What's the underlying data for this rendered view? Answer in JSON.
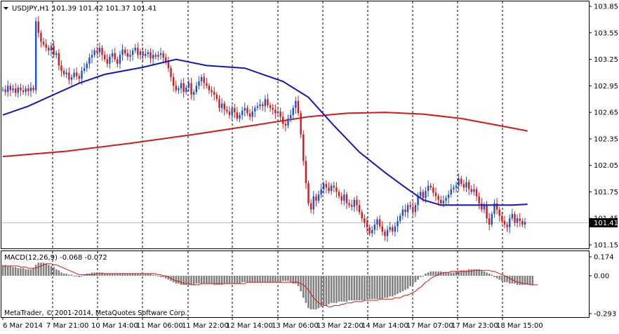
{
  "header": {
    "symbol_tf": "USDJPY,H1",
    "ohlc": "101.39 101.42 101.37 101.41"
  },
  "macd_panel": {
    "title": "MACD(12,26,9) -0.068 -0.072",
    "copyright": "MetaTrader, © 2001-2014, MetaQuotes Software Corp.",
    "axis_labels": [
      "0.174",
      "0.00",
      "-0.293"
    ]
  },
  "chart_data": [
    {
      "type": "candlestick",
      "name": "price",
      "ylim": [
        101.05,
        103.91
      ],
      "y_ticks": [
        "103.85",
        "103.55",
        "103.25",
        "102.95",
        "102.65",
        "102.35",
        "102.05",
        "101.75",
        "101.45",
        "101.15"
      ],
      "current_price_label": "101.41",
      "current_price": 101.41,
      "x_labels": [
        "6 Mar 2014",
        "7 Mar 21:00",
        "10 Mar 14:00",
        "11 Mar 06:00",
        "11 Mar 22:00",
        "12 Mar 14:00",
        "13 Mar 06:00",
        "13 Mar 22:00",
        "14 Mar 14:00",
        "17 Mar 07:00",
        "17 Mar 23:00",
        "18 Mar 15:00"
      ],
      "colors": {
        "bull": "#1e4fd6",
        "bear": "#d81818",
        "ma_fast": "#1414c8",
        "ma_slow": "#d81818",
        "grid": "#000000",
        "price_line": "#c0c0c0"
      },
      "closes": [
        102.91,
        102.88,
        102.95,
        102.9,
        102.92,
        102.87,
        102.93,
        102.9,
        102.88,
        102.92,
        102.89,
        102.93,
        102.9,
        103.68,
        103.55,
        103.45,
        103.42,
        103.38,
        103.35,
        103.4,
        103.3,
        103.32,
        103.18,
        103.12,
        103.08,
        103.1,
        103.02,
        103.05,
        103.1,
        103.06,
        103.03,
        103.12,
        103.15,
        103.2,
        103.27,
        103.3,
        103.35,
        103.33,
        103.38,
        103.3,
        103.25,
        103.2,
        103.28,
        103.32,
        103.25,
        103.2,
        103.3,
        103.36,
        103.32,
        103.28,
        103.3,
        103.35,
        103.38,
        103.3,
        103.34,
        103.29,
        103.31,
        103.33,
        103.26,
        103.3,
        103.28,
        103.3,
        103.32,
        103.27,
        103.22,
        103.15,
        103.05,
        102.95,
        102.9,
        102.92,
        102.98,
        102.88,
        102.93,
        102.98,
        102.85,
        102.88,
        102.95,
        103.0,
        103.05,
        102.98,
        102.95,
        102.9,
        102.88,
        102.85,
        102.8,
        102.7,
        102.75,
        102.68,
        102.66,
        102.62,
        102.7,
        102.65,
        102.58,
        102.62,
        102.67,
        102.7,
        102.64,
        102.6,
        102.66,
        102.7,
        102.72,
        102.74,
        102.72,
        102.8,
        102.73,
        102.7,
        102.68,
        102.64,
        102.66,
        102.6,
        102.52,
        102.5,
        102.58,
        102.62,
        102.7,
        102.78,
        102.64,
        102.4,
        102.1,
        101.85,
        101.62,
        101.55,
        101.7,
        101.65,
        101.72,
        101.78,
        101.84,
        101.8,
        101.76,
        101.82,
        101.8,
        101.75,
        101.7,
        101.65,
        101.72,
        101.62,
        101.6,
        101.58,
        101.66,
        101.6,
        101.52,
        101.45,
        101.4,
        101.35,
        101.28,
        101.32,
        101.38,
        101.44,
        101.36,
        101.3,
        101.25,
        101.32,
        101.35,
        101.3,
        101.36,
        101.42,
        101.48,
        101.55,
        101.52,
        101.6,
        101.58,
        101.52,
        101.6,
        101.7,
        101.75,
        101.68,
        101.76,
        101.82,
        101.8,
        101.74,
        101.7,
        101.66,
        101.62,
        101.65,
        101.68,
        101.72,
        101.78,
        101.8,
        101.82,
        101.9,
        101.84,
        101.8,
        101.86,
        101.78,
        101.75,
        101.78,
        101.7,
        101.62,
        101.55,
        101.6,
        101.45,
        101.38,
        101.5,
        101.62,
        101.55,
        101.48,
        101.42,
        101.38,
        101.35,
        101.45,
        101.5,
        101.4,
        101.45,
        101.42,
        101.38,
        101.41
      ],
      "ma_fast": {
        "anchors": [
          [
            0,
            102.62
          ],
          [
            10,
            102.72
          ],
          [
            20,
            102.85
          ],
          [
            30,
            102.98
          ],
          [
            40,
            103.08
          ],
          [
            55,
            103.16
          ],
          [
            68,
            103.25
          ],
          [
            80,
            103.18
          ],
          [
            95,
            103.15
          ],
          [
            110,
            103.0
          ],
          [
            120,
            102.82
          ],
          [
            130,
            102.5
          ],
          [
            140,
            102.2
          ],
          [
            150,
            101.97
          ],
          [
            158,
            101.8
          ],
          [
            165,
            101.66
          ],
          [
            172,
            101.6
          ],
          [
            186,
            101.6
          ],
          [
            200,
            101.6
          ],
          [
            206,
            101.61
          ]
        ]
      },
      "ma_slow": {
        "anchors": [
          [
            0,
            102.15
          ],
          [
            25,
            102.21
          ],
          [
            50,
            102.3
          ],
          [
            75,
            102.4
          ],
          [
            100,
            102.51
          ],
          [
            120,
            102.6
          ],
          [
            135,
            102.64
          ],
          [
            150,
            102.65
          ],
          [
            165,
            102.63
          ],
          [
            180,
            102.58
          ],
          [
            195,
            102.5
          ],
          [
            206,
            102.44
          ]
        ]
      }
    },
    {
      "type": "macd",
      "name": "MACD(12,26,9)",
      "ylim": [
        -0.293,
        0.174
      ],
      "y_ticks": [
        "0.174",
        "0.00",
        "-0.293"
      ],
      "histogram_colors": {
        "bar": "#808080",
        "signal": "#d81818"
      },
      "histogram": [
        0.1,
        0.1,
        0.09,
        0.09,
        0.08,
        0.08,
        0.07,
        0.07,
        0.07,
        0.06,
        0.06,
        0.06,
        0.07,
        0.1,
        0.12,
        0.12,
        0.12,
        0.11,
        0.1,
        0.09,
        0.08,
        0.06,
        0.05,
        0.03,
        0.02,
        0.02,
        0.01,
        0.01,
        0.0,
        0.0,
        -0.01,
        0.0,
        0.01,
        0.02,
        0.02,
        0.03,
        0.03,
        0.03,
        0.03,
        0.03,
        0.02,
        0.02,
        0.02,
        0.02,
        0.02,
        0.02,
        0.02,
        0.02,
        0.02,
        0.02,
        0.02,
        0.02,
        0.02,
        0.02,
        0.02,
        0.02,
        0.02,
        0.02,
        0.02,
        0.01,
        0.01,
        0.0,
        -0.01,
        -0.01,
        -0.02,
        -0.03,
        -0.04,
        -0.05,
        -0.06,
        -0.06,
        -0.07,
        -0.07,
        -0.07,
        -0.07,
        -0.07,
        -0.07,
        -0.06,
        -0.06,
        -0.06,
        -0.06,
        -0.06,
        -0.06,
        -0.06,
        -0.07,
        -0.07,
        -0.07,
        -0.07,
        -0.06,
        -0.06,
        -0.06,
        -0.06,
        -0.06,
        -0.06,
        -0.06,
        -0.05,
        -0.05,
        -0.05,
        -0.05,
        -0.05,
        -0.05,
        -0.05,
        -0.05,
        -0.05,
        -0.05,
        -0.05,
        -0.05,
        -0.05,
        -0.05,
        -0.05,
        -0.05,
        -0.04,
        -0.04,
        -0.04,
        -0.05,
        -0.06,
        -0.06,
        -0.08,
        -0.12,
        -0.17,
        -0.21,
        -0.25,
        -0.26,
        -0.26,
        -0.26,
        -0.25,
        -0.24,
        -0.23,
        -0.23,
        -0.22,
        -0.21,
        -0.21,
        -0.21,
        -0.2,
        -0.2,
        -0.2,
        -0.2,
        -0.19,
        -0.19,
        -0.19,
        -0.19,
        -0.19,
        -0.19,
        -0.19,
        -0.18,
        -0.18,
        -0.18,
        -0.18,
        -0.18,
        -0.18,
        -0.18,
        -0.17,
        -0.17,
        -0.16,
        -0.16,
        -0.15,
        -0.14,
        -0.13,
        -0.12,
        -0.11,
        -0.1,
        -0.08,
        -0.07,
        -0.05,
        -0.03,
        -0.01,
        0.0,
        0.02,
        0.03,
        0.04,
        0.04,
        0.04,
        0.04,
        0.04,
        0.03,
        0.03,
        0.03,
        0.03,
        0.03,
        0.04,
        0.04,
        0.05,
        0.05,
        0.05,
        0.06,
        0.06,
        0.06,
        0.06,
        0.06,
        0.05,
        0.04,
        0.03,
        0.02,
        0.01,
        -0.01,
        -0.02,
        -0.03,
        -0.04,
        -0.05,
        -0.05,
        -0.06,
        -0.06,
        -0.06,
        -0.07,
        -0.07,
        -0.07,
        -0.07,
        -0.07,
        -0.07,
        -0.07
      ],
      "signal": [
        0.08,
        0.09,
        0.09,
        0.09,
        0.09,
        0.09,
        0.09,
        0.08,
        0.08,
        0.08,
        0.07,
        0.07,
        0.07,
        0.07,
        0.08,
        0.09,
        0.1,
        0.11,
        0.11,
        0.11,
        0.1,
        0.1,
        0.09,
        0.08,
        0.07,
        0.06,
        0.05,
        0.04,
        0.03,
        0.02,
        0.01,
        0.01,
        0.01,
        0.01,
        0.01,
        0.01,
        0.01,
        0.02,
        0.02,
        0.02,
        0.02,
        0.02,
        0.02,
        0.02,
        0.02,
        0.02,
        0.02,
        0.02,
        0.02,
        0.02,
        0.02,
        0.02,
        0.02,
        0.02,
        0.02,
        0.02,
        0.02,
        0.02,
        0.02,
        0.02,
        0.02,
        0.01,
        0.01,
        0.0,
        0.0,
        -0.01,
        -0.02,
        -0.03,
        -0.04,
        -0.04,
        -0.05,
        -0.06,
        -0.06,
        -0.06,
        -0.07,
        -0.07,
        -0.07,
        -0.07,
        -0.06,
        -0.06,
        -0.06,
        -0.06,
        -0.06,
        -0.06,
        -0.06,
        -0.06,
        -0.06,
        -0.06,
        -0.06,
        -0.06,
        -0.06,
        -0.06,
        -0.06,
        -0.06,
        -0.06,
        -0.06,
        -0.05,
        -0.05,
        -0.05,
        -0.05,
        -0.05,
        -0.05,
        -0.05,
        -0.05,
        -0.05,
        -0.05,
        -0.05,
        -0.05,
        -0.05,
        -0.05,
        -0.05,
        -0.05,
        -0.05,
        -0.05,
        -0.05,
        -0.05,
        -0.05,
        -0.06,
        -0.07,
        -0.09,
        -0.11,
        -0.14,
        -0.17,
        -0.19,
        -0.21,
        -0.22,
        -0.23,
        -0.23,
        -0.24,
        -0.24,
        -0.23,
        -0.23,
        -0.23,
        -0.22,
        -0.22,
        -0.21,
        -0.21,
        -0.21,
        -0.2,
        -0.2,
        -0.2,
        -0.2,
        -0.19,
        -0.19,
        -0.19,
        -0.19,
        -0.19,
        -0.19,
        -0.18,
        -0.18,
        -0.18,
        -0.18,
        -0.18,
        -0.18,
        -0.17,
        -0.17,
        -0.17,
        -0.16,
        -0.15,
        -0.15,
        -0.14,
        -0.13,
        -0.12,
        -0.1,
        -0.09,
        -0.07,
        -0.05,
        -0.04,
        -0.02,
        -0.01,
        0.0,
        0.01,
        0.02,
        0.03,
        0.03,
        0.03,
        0.04,
        0.04,
        0.04,
        0.04,
        0.04,
        0.04,
        0.04,
        0.04,
        0.04,
        0.05,
        0.05,
        0.05,
        0.05,
        0.05,
        0.05,
        0.05,
        0.04,
        0.04,
        0.03,
        0.02,
        0.01,
        0.0,
        -0.01,
        -0.02,
        -0.03,
        -0.04,
        -0.05,
        -0.05,
        -0.06,
        -0.06,
        -0.06,
        -0.07,
        -0.07,
        -0.07,
        -0.07
      ]
    }
  ]
}
